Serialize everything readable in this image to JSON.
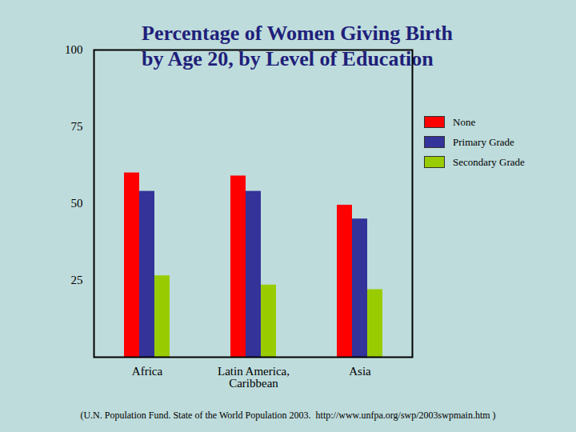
{
  "chart_data": {
    "type": "bar",
    "title": "Percentage of Women Giving Birth\nby Age 20, by Level of Education",
    "source": "(U.N. Population Fund. State of the World Population 2003.  http://www.unfpa.org/swp/2003swpmain.htm )",
    "categories": [
      "Africa",
      "Latin America, Caribbean",
      "Asia"
    ],
    "series": [
      {
        "name": "None",
        "color": "#ff0000",
        "values": [
          60,
          59,
          49.5
        ]
      },
      {
        "name": "Primary Grade",
        "color": "#333399",
        "values": [
          54,
          54,
          45
        ]
      },
      {
        "name": "Secondary Grade",
        "color": "#99cc00",
        "values": [
          26.5,
          23.5,
          22
        ]
      }
    ],
    "ylim": [
      0,
      100
    ],
    "yticks": [
      25,
      50,
      75,
      100
    ],
    "grid": false,
    "legend": "top-right"
  }
}
